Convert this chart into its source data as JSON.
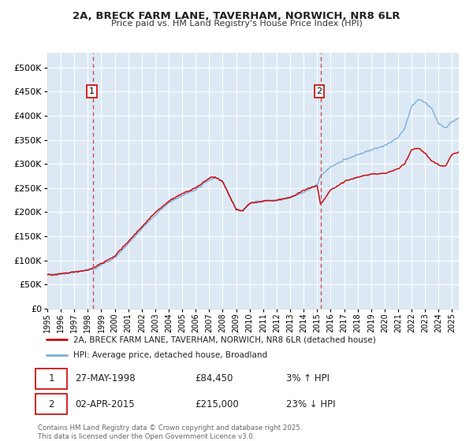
{
  "title": "2A, BRECK FARM LANE, TAVERHAM, NORWICH, NR8 6LR",
  "subtitle": "Price paid vs. HM Land Registry's House Price Index (HPI)",
  "ytick_values": [
    0,
    50000,
    100000,
    150000,
    200000,
    250000,
    300000,
    350000,
    400000,
    450000,
    500000
  ],
  "ylim": [
    0,
    530000
  ],
  "xlim_start": 1995.0,
  "xlim_end": 2025.5,
  "background_color": "#dce9f5",
  "grid_color": "#ffffff",
  "line_color_red": "#cc0000",
  "line_color_blue": "#7aabdb",
  "sale1_x": 1998.41,
  "sale1_y": 84450,
  "sale2_x": 2015.25,
  "sale2_y": 215000,
  "legend_line1": "2A, BRECK FARM LANE, TAVERHAM, NORWICH, NR8 6LR (detached house)",
  "legend_line2": "HPI: Average price, detached house, Broadland",
  "annotation1_date": "27-MAY-1998",
  "annotation1_price": "£84,450",
  "annotation1_hpi": "3% ↑ HPI",
  "annotation2_date": "02-APR-2015",
  "annotation2_price": "£215,000",
  "annotation2_hpi": "23% ↓ HPI",
  "footer": "Contains HM Land Registry data © Crown copyright and database right 2025.\nThis data is licensed under the Open Government Licence v3.0."
}
